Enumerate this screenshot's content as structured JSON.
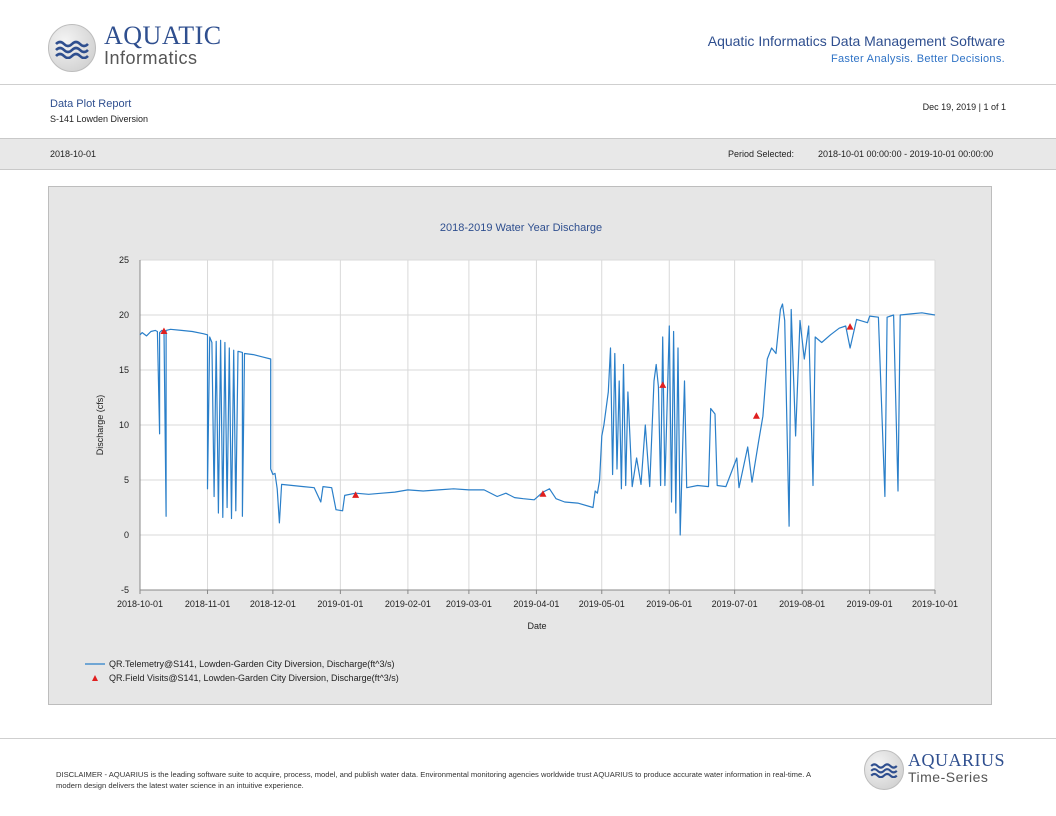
{
  "header": {
    "logo_line1": "AQUATIC",
    "logo_line2": "Informatics",
    "title": "Aquatic Informatics Data Management Software",
    "tagline": "Faster Analysis. Better Decisions."
  },
  "report": {
    "name": "Data Plot Report",
    "location": "S-141 Lowden Diversion",
    "date_page": "Dec 19, 2019 | 1 of 1"
  },
  "band": {
    "date": "2018-10-01",
    "period_label": "Period Selected:",
    "period_value": "2018-10-01 00:00:00 - 2019-10-01 00:00:00"
  },
  "footer": {
    "disclaimer": "DISCLAIMER - AQUARIUS is the leading software suite to acquire, process, model, and publish water data. Environmental monitoring agencies worldwide trust AQUARIUS to produce accurate water information in real-time. A modern design delivers the latest water science in an intuitive experience.",
    "logo_line1": "AQUARIUS",
    "logo_line2": "Time-Series"
  },
  "colors": {
    "brand_dark": "#2f4f8f",
    "brand_light": "#2f73c6",
    "telemetry_line": "#2a7fc9",
    "field_visit_marker": "#e01f1f",
    "chart_panel_bg": "#e6e6e6"
  },
  "chart_data": {
    "type": "line",
    "title": "2018-2019 Water Year Discharge",
    "xlabel": "Date",
    "ylabel": "Discharge (cfs)",
    "xlim": [
      "2018-10-01",
      "2019-10-01"
    ],
    "ylim": [
      -5,
      25
    ],
    "x_ticks": [
      "2018-10-01",
      "2018-11-01",
      "2018-12-01",
      "2019-01-01",
      "2019-02-01",
      "2019-03-01",
      "2019-04-01",
      "2019-05-01",
      "2019-06-01",
      "2019-07-01",
      "2019-08-01",
      "2019-09-01",
      "2019-10-01"
    ],
    "y_ticks": [
      -5,
      0,
      5,
      10,
      15,
      20,
      25
    ],
    "grid": true,
    "legend_position": "bottom-left",
    "series": [
      {
        "name": "QR.Telemetry@S141, Lowden-Garden City Diversion, Discharge(ft^3/s)",
        "type": "line",
        "color": "#2a7fc9",
        "points": [
          [
            "2018-10-01",
            18.2
          ],
          [
            "2018-10-02",
            18.4
          ],
          [
            "2018-10-04",
            18.1
          ],
          [
            "2018-10-06",
            18.5
          ],
          [
            "2018-10-08",
            18.6
          ],
          [
            "2018-10-09",
            18.5
          ],
          [
            "2018-10-10",
            9.2
          ],
          [
            "2018-10-10",
            18.4
          ],
          [
            "2018-10-11",
            18.6
          ],
          [
            "2018-10-12",
            18.5
          ],
          [
            "2018-10-13",
            1.7
          ],
          [
            "2018-10-13",
            18.6
          ],
          [
            "2018-10-15",
            18.7
          ],
          [
            "2018-10-20",
            18.6
          ],
          [
            "2018-10-25",
            18.5
          ],
          [
            "2018-10-30",
            18.3
          ],
          [
            "2018-11-01",
            18.2
          ],
          [
            "2018-11-01",
            4.2
          ],
          [
            "2018-11-02",
            18.0
          ],
          [
            "2018-11-03",
            17.5
          ],
          [
            "2018-11-04",
            3.5
          ],
          [
            "2018-11-05",
            17.6
          ],
          [
            "2018-11-06",
            2.0
          ],
          [
            "2018-11-07",
            17.7
          ],
          [
            "2018-11-08",
            1.6
          ],
          [
            "2018-11-09",
            17.5
          ],
          [
            "2018-11-10",
            2.5
          ],
          [
            "2018-11-11",
            17.0
          ],
          [
            "2018-11-12",
            1.5
          ],
          [
            "2018-11-13",
            16.8
          ],
          [
            "2018-11-14",
            2.2
          ],
          [
            "2018-11-15",
            16.7
          ],
          [
            "2018-11-17",
            16.6
          ],
          [
            "2018-11-17",
            1.7
          ],
          [
            "2018-11-18",
            16.5
          ],
          [
            "2018-11-22",
            16.4
          ],
          [
            "2018-11-26",
            16.2
          ],
          [
            "2018-11-30",
            16.0
          ],
          [
            "2018-11-30",
            6.0
          ],
          [
            "2018-12-01",
            5.5
          ],
          [
            "2018-12-02",
            5.6
          ],
          [
            "2018-12-03",
            4.2
          ],
          [
            "2018-12-04",
            1.1
          ],
          [
            "2018-12-05",
            4.6
          ],
          [
            "2018-12-10",
            4.5
          ],
          [
            "2018-12-15",
            4.4
          ],
          [
            "2018-12-20",
            4.3
          ],
          [
            "2018-12-23",
            3.0
          ],
          [
            "2018-12-24",
            4.4
          ],
          [
            "2018-12-28",
            4.3
          ],
          [
            "2018-12-30",
            2.3
          ],
          [
            "2019-01-02",
            2.2
          ],
          [
            "2019-01-03",
            3.6
          ],
          [
            "2019-01-08",
            3.8
          ],
          [
            "2019-01-14",
            3.7
          ],
          [
            "2019-01-20",
            3.8
          ],
          [
            "2019-01-26",
            3.9
          ],
          [
            "2019-02-01",
            4.1
          ],
          [
            "2019-02-08",
            4.0
          ],
          [
            "2019-02-15",
            4.1
          ],
          [
            "2019-02-22",
            4.2
          ],
          [
            "2019-03-01",
            4.1
          ],
          [
            "2019-03-08",
            4.1
          ],
          [
            "2019-03-14",
            3.5
          ],
          [
            "2019-03-18",
            3.8
          ],
          [
            "2019-03-22",
            3.4
          ],
          [
            "2019-03-26",
            3.3
          ],
          [
            "2019-03-31",
            3.2
          ],
          [
            "2019-04-04",
            3.9
          ],
          [
            "2019-04-07",
            4.2
          ],
          [
            "2019-04-10",
            3.3
          ],
          [
            "2019-04-14",
            3.0
          ],
          [
            "2019-04-20",
            2.9
          ],
          [
            "2019-04-27",
            2.5
          ],
          [
            "2019-04-28",
            4.0
          ],
          [
            "2019-04-29",
            3.8
          ],
          [
            "2019-04-30",
            5.0
          ],
          [
            "2019-05-01",
            9.0
          ],
          [
            "2019-05-02",
            10.0
          ],
          [
            "2019-05-03",
            11.5
          ],
          [
            "2019-05-04",
            13.0
          ],
          [
            "2019-05-05",
            17.0
          ],
          [
            "2019-05-06",
            5.5
          ],
          [
            "2019-05-07",
            16.5
          ],
          [
            "2019-05-08",
            6.0
          ],
          [
            "2019-05-09",
            14.0
          ],
          [
            "2019-05-10",
            4.2
          ],
          [
            "2019-05-11",
            15.5
          ],
          [
            "2019-05-12",
            4.5
          ],
          [
            "2019-05-13",
            13.0
          ],
          [
            "2019-05-15",
            4.4
          ],
          [
            "2019-05-17",
            7.0
          ],
          [
            "2019-05-19",
            4.6
          ],
          [
            "2019-05-21",
            10.0
          ],
          [
            "2019-05-23",
            4.4
          ],
          [
            "2019-05-25",
            14.0
          ],
          [
            "2019-05-26",
            15.5
          ],
          [
            "2019-05-27",
            13.5
          ],
          [
            "2019-05-28",
            4.5
          ],
          [
            "2019-05-29",
            18.0
          ],
          [
            "2019-05-30",
            4.5
          ],
          [
            "2019-06-01",
            19.0
          ],
          [
            "2019-06-02",
            3.0
          ],
          [
            "2019-06-03",
            18.5
          ],
          [
            "2019-06-04",
            2.0
          ],
          [
            "2019-06-05",
            17.0
          ],
          [
            "2019-06-06",
            0.0
          ],
          [
            "2019-06-08",
            14.0
          ],
          [
            "2019-06-09",
            4.3
          ],
          [
            "2019-06-14",
            4.5
          ],
          [
            "2019-06-19",
            4.4
          ],
          [
            "2019-06-20",
            11.5
          ],
          [
            "2019-06-22",
            11.0
          ],
          [
            "2019-06-23",
            4.5
          ],
          [
            "2019-06-27",
            4.4
          ],
          [
            "2019-07-02",
            7.0
          ],
          [
            "2019-07-03",
            4.3
          ],
          [
            "2019-07-07",
            8.0
          ],
          [
            "2019-07-09",
            4.8
          ],
          [
            "2019-07-12",
            8.5
          ],
          [
            "2019-07-14",
            10.8
          ],
          [
            "2019-07-16",
            16.0
          ],
          [
            "2019-07-18",
            17.0
          ],
          [
            "2019-07-20",
            16.5
          ],
          [
            "2019-07-22",
            20.5
          ],
          [
            "2019-07-23",
            21.0
          ],
          [
            "2019-07-24",
            19.5
          ],
          [
            "2019-07-26",
            0.8
          ],
          [
            "2019-07-27",
            20.5
          ],
          [
            "2019-07-29",
            9.0
          ],
          [
            "2019-07-31",
            19.5
          ],
          [
            "2019-08-02",
            16.0
          ],
          [
            "2019-08-04",
            19.0
          ],
          [
            "2019-08-06",
            4.5
          ],
          [
            "2019-08-07",
            18.0
          ],
          [
            "2019-08-10",
            17.5
          ],
          [
            "2019-08-14",
            18.2
          ],
          [
            "2019-08-18",
            18.8
          ],
          [
            "2019-08-21",
            19.0
          ],
          [
            "2019-08-23",
            17.0
          ],
          [
            "2019-08-26",
            19.6
          ],
          [
            "2019-08-31",
            19.3
          ],
          [
            "2019-09-01",
            19.9
          ],
          [
            "2019-09-05",
            19.8
          ],
          [
            "2019-09-08",
            3.5
          ],
          [
            "2019-09-09",
            19.8
          ],
          [
            "2019-09-12",
            20.0
          ],
          [
            "2019-09-14",
            4.0
          ],
          [
            "2019-09-15",
            20.0
          ],
          [
            "2019-09-20",
            20.1
          ],
          [
            "2019-09-25",
            20.2
          ],
          [
            "2019-10-01",
            20.0
          ]
        ]
      },
      {
        "name": "QR.Field Visits@S141, Lowden-Garden City Diversion, Discharge(ft^3/s)",
        "type": "scatter",
        "marker": "triangle",
        "color": "#e01f1f",
        "points": [
          [
            "2018-10-12",
            18.5
          ],
          [
            "2019-01-08",
            3.6
          ],
          [
            "2019-04-04",
            3.7
          ],
          [
            "2019-05-29",
            13.6
          ],
          [
            "2019-07-11",
            10.8
          ],
          [
            "2019-08-23",
            18.9
          ]
        ]
      }
    ]
  }
}
